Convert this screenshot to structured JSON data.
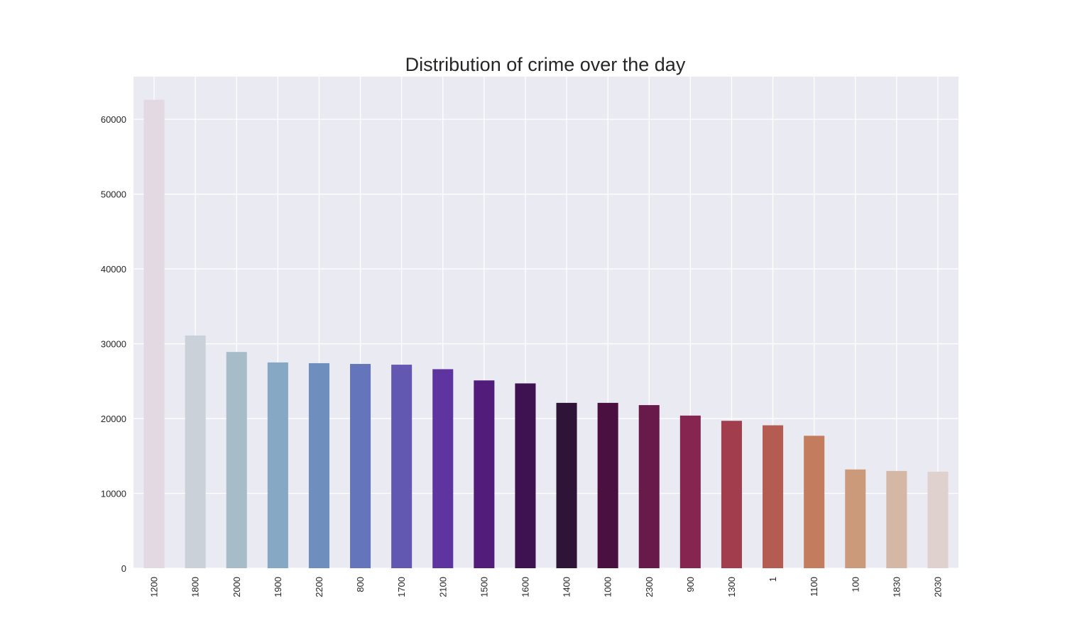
{
  "chart_data": {
    "type": "bar",
    "title": "Distribution of crime over the day",
    "xlabel": "",
    "ylabel": "",
    "categories": [
      "1200",
      "1800",
      "2000",
      "1900",
      "2200",
      "800",
      "1700",
      "2100",
      "1500",
      "1600",
      "1400",
      "1000",
      "2300",
      "900",
      "1300",
      "1",
      "1100",
      "100",
      "1830",
      "2030"
    ],
    "values": [
      62600,
      31100,
      28900,
      27500,
      27400,
      27300,
      27200,
      26600,
      25100,
      24700,
      22100,
      22100,
      21800,
      20400,
      19700,
      19100,
      17700,
      13200,
      13000,
      12900
    ],
    "ylim": [
      0,
      65700
    ],
    "yticks": [
      0,
      10000,
      20000,
      30000,
      40000,
      50000,
      60000
    ],
    "ytick_labels": [
      "0",
      "10000",
      "20000",
      "30000",
      "40000",
      "50000",
      "60000"
    ],
    "grid": true,
    "legend": "none",
    "background_color": "#eaeaf2",
    "grid_color": "#ffffff",
    "bar_colors": [
      "#e2d9e2",
      "#cbd1d9",
      "#a7bcc9",
      "#86a8c4",
      "#6e8ebe",
      "#6575bb",
      "#6257b1",
      "#5e35a0",
      "#521c7b",
      "#3e1151",
      "#2e1437",
      "#4a1140",
      "#681a4b",
      "#852550",
      "#a13d4c",
      "#b55c52",
      "#c47c5f",
      "#cb9a7b",
      "#d5b7a6",
      "#dfd1ce"
    ]
  }
}
